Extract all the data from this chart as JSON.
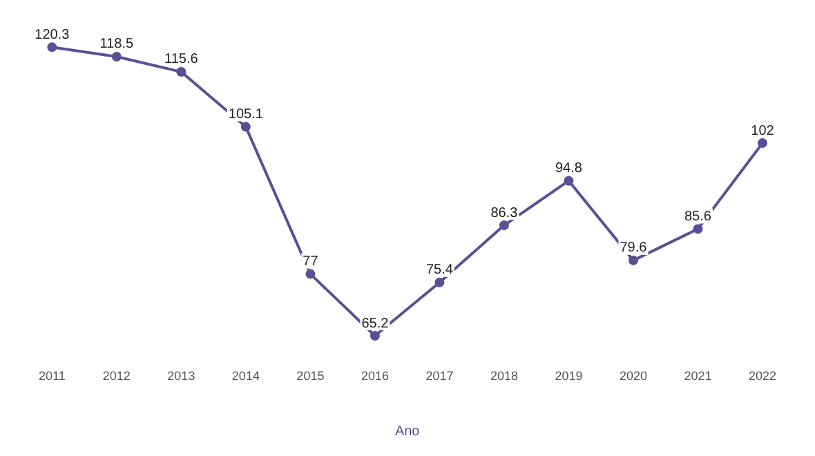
{
  "chart_data": {
    "type": "line",
    "xlabel": "Ano",
    "categories": [
      "2011",
      "2012",
      "2013",
      "2014",
      "2015",
      "2016",
      "2017",
      "2018",
      "2019",
      "2020",
      "2021",
      "2022"
    ],
    "series": [
      {
        "color": "#5b4f96",
        "values": [
          120.3,
          118.5,
          115.6,
          105.1,
          77,
          65.2,
          75.4,
          86.3,
          94.8,
          79.6,
          85.6,
          102
        ]
      }
    ],
    "data_labels": true,
    "marker": "circle",
    "line_style": "solid",
    "grid": false,
    "legend": false
  }
}
